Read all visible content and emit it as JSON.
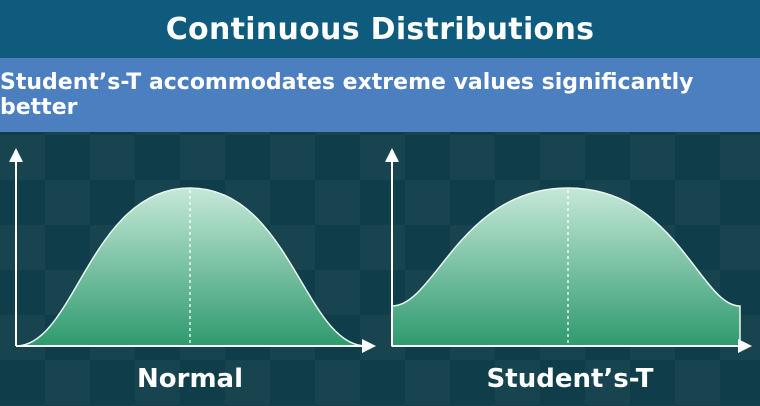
{
  "header": {
    "title": "Continuous Distributions",
    "subtitle": "Student’s-T accommodates extreme values significantly better"
  },
  "colors": {
    "title_bar": "#0f5b7e",
    "subtitle_bar": "#4b7fbf",
    "curve_fill_top": "#c6e8d8",
    "curve_fill_bottom": "#2e9a6e",
    "axis": "#ffffff"
  },
  "charts": [
    {
      "label": "Normal",
      "kind": "normal-distribution-curve",
      "tails": "thin"
    },
    {
      "label": "Student’s-T",
      "kind": "student-t-distribution-curve",
      "tails": "fat"
    }
  ]
}
